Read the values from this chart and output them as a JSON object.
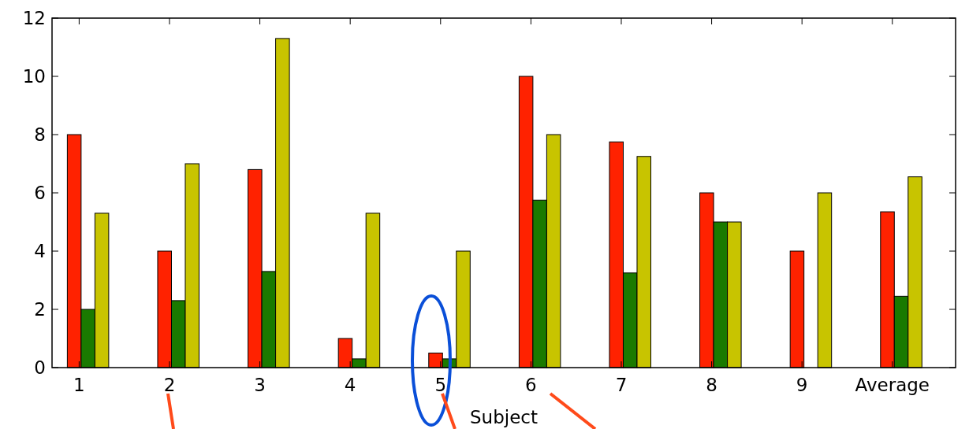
{
  "chart_data": {
    "type": "bar",
    "xlabel": "Subject",
    "categories": [
      "1",
      "2",
      "3",
      "4",
      "5",
      "6",
      "7",
      "8",
      "9",
      "Average"
    ],
    "series": [
      {
        "color": "#ff2200",
        "values": [
          8,
          4,
          6.8,
          1,
          0.5,
          10,
          7.75,
          6,
          4,
          5.35
        ]
      },
      {
        "color": "#1a7a00",
        "values": [
          2,
          2.3,
          3.3,
          0.3,
          0.3,
          5.75,
          3.25,
          5,
          0,
          2.45
        ]
      },
      {
        "color": "#c8c400",
        "values": [
          5.3,
          7,
          11.3,
          5.3,
          4,
          8,
          7.25,
          5,
          6,
          6.55
        ]
      }
    ],
    "ylim": [
      0,
      12
    ],
    "yticks": [
      0,
      2,
      4,
      6,
      8,
      10,
      12
    ],
    "grid": false
  }
}
